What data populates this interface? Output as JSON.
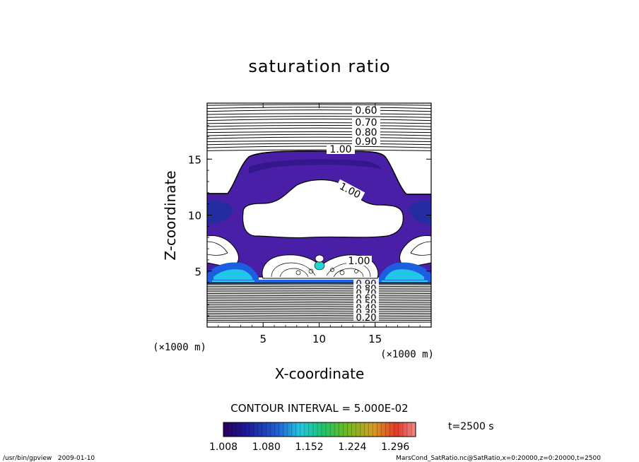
{
  "chart_data": {
    "type": "contour",
    "title": "saturation ratio",
    "xlabel": "X-coordinate",
    "ylabel": "Z-coordinate",
    "x_unit": "(×1000 m)",
    "y_unit": "(×1000 m)",
    "xlim": [
      0,
      20
    ],
    "ylim": [
      0,
      20
    ],
    "x_ticks": [
      "5",
      "10",
      "15"
    ],
    "y_ticks": [
      "5",
      "10",
      "15"
    ],
    "x_tick_values": [
      5,
      10,
      15
    ],
    "y_tick_values": [
      5,
      10,
      15
    ],
    "contour_labels_upper": [
      "0.60",
      "0.70",
      "0.80",
      "0.90",
      "1.00"
    ],
    "contour_labels_inner": [
      "1.00",
      "1.00"
    ],
    "contour_labels_lower": [
      "0.90",
      "0.80",
      "0.70",
      "0.60",
      "0.50",
      "0.40",
      "0.30",
      "0.20"
    ],
    "contour_interval_text": "CONTOUR INTERVAL = 5.000E-02",
    "colorbar": {
      "tick_labels": [
        "1.008",
        "1.080",
        "1.152",
        "1.224",
        "1.296"
      ],
      "tick_values": [
        1.008,
        1.08,
        1.152,
        1.224,
        1.296
      ],
      "range": [
        1.008,
        1.33
      ]
    },
    "time_label": "t=2500 s"
  },
  "footer": {
    "left": "/usr/bin/gpview   2009-01-10",
    "right": "MarsCond_SatRatio.nc@SatRatio,x=0:20000,z=0:20000,t=2500"
  }
}
